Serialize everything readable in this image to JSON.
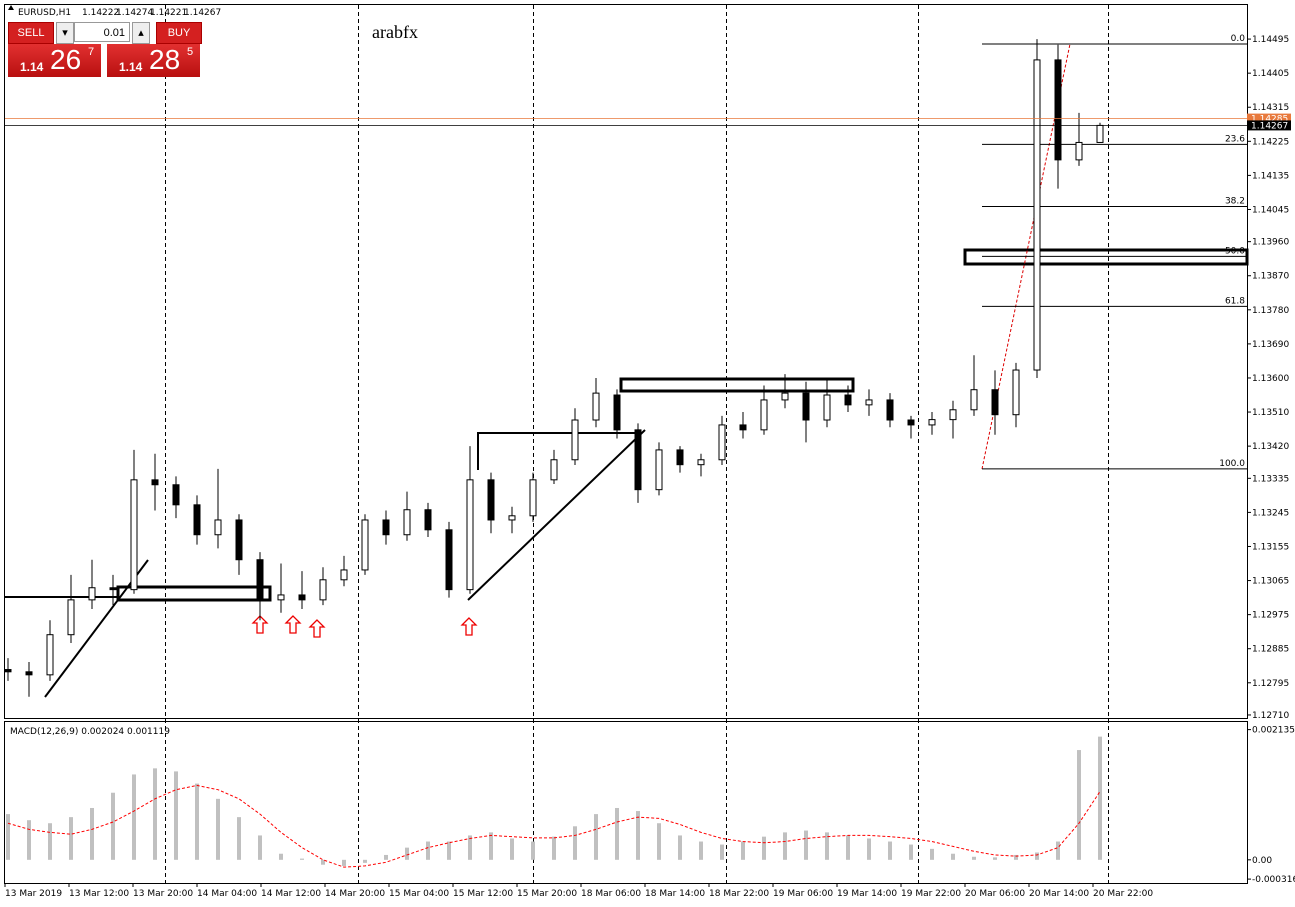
{
  "header": {
    "symbol": "EURUSD,H1",
    "ohlc": [
      1.14222,
      1.14274,
      1.14221,
      1.14267
    ]
  },
  "watermark": "arabfx",
  "trade_panel": {
    "sell": "SELL",
    "buy": "BUY",
    "lot": "0.01",
    "bid": {
      "big": "1.14",
      "pips": "26",
      "point": "7"
    },
    "ask": {
      "big": "1.14",
      "pips": "28",
      "point": "5"
    }
  },
  "chart_data": [
    {
      "type": "candlestick",
      "open": [
        1.1283,
        1.12824,
        1.12816,
        1.12922,
        1.13014,
        1.13046,
        1.13041,
        1.13331,
        1.13318,
        1.13265,
        1.13186,
        1.13225,
        1.1312,
        1.13014,
        1.13027,
        1.13014,
        1.13067,
        1.13093,
        1.13225,
        1.13186,
        1.13252,
        1.13199,
        1.13041,
        1.13331,
        1.13225,
        1.13236,
        1.13331,
        1.13384,
        1.13489,
        1.13555,
        1.13463,
        1.13305,
        1.1341,
        1.13371,
        1.13384,
        1.13476,
        1.13463,
        1.13542,
        1.1356,
        1.13489,
        1.13555,
        1.13529,
        1.13542,
        1.13489,
        1.13476,
        1.1349,
        1.13516,
        1.13569,
        1.13503,
        1.13621,
        1.1444,
        1.14176,
        1.14222
      ],
      "high": [
        1.1286,
        1.1285,
        1.1296,
        1.1308,
        1.1312,
        1.1308,
        1.1341,
        1.134,
        1.1334,
        1.1329,
        1.1336,
        1.1324,
        1.1314,
        1.1311,
        1.1309,
        1.131,
        1.1313,
        1.1324,
        1.1325,
        1.133,
        1.1327,
        1.1322,
        1.1342,
        1.1335,
        1.1326,
        1.1335,
        1.1341,
        1.1352,
        1.136,
        1.1357,
        1.1348,
        1.1343,
        1.1342,
        1.134,
        1.135,
        1.1351,
        1.1358,
        1.1361,
        1.1359,
        1.136,
        1.1358,
        1.1357,
        1.1356,
        1.135,
        1.1351,
        1.1354,
        1.1366,
        1.1362,
        1.1364,
        1.14495,
        1.1448,
        1.143,
        1.14274
      ],
      "low": [
        1.128,
        1.12758,
        1.128,
        1.129,
        1.1299,
        1.13,
        1.1303,
        1.1325,
        1.1323,
        1.1316,
        1.1315,
        1.1308,
        1.1296,
        1.1298,
        1.1299,
        1.13,
        1.1305,
        1.1308,
        1.1316,
        1.1317,
        1.1318,
        1.1302,
        1.1303,
        1.1319,
        1.1319,
        1.1322,
        1.1332,
        1.1337,
        1.1347,
        1.1344,
        1.1327,
        1.1329,
        1.1335,
        1.1334,
        1.1337,
        1.1344,
        1.1345,
        1.1352,
        1.1343,
        1.1347,
        1.1351,
        1.135,
        1.1347,
        1.1344,
        1.1345,
        1.1344,
        1.135,
        1.1345,
        1.1347,
        1.136,
        1.141,
        1.1416,
        1.14221
      ],
      "close": [
        1.12824,
        1.12816,
        1.12922,
        1.13014,
        1.13046,
        1.13041,
        1.13331,
        1.13318,
        1.13265,
        1.13186,
        1.13225,
        1.1312,
        1.13014,
        1.13027,
        1.13014,
        1.13067,
        1.13093,
        1.13225,
        1.13186,
        1.13252,
        1.13199,
        1.13041,
        1.13331,
        1.13225,
        1.13236,
        1.13331,
        1.13384,
        1.13489,
        1.1356,
        1.13463,
        1.13305,
        1.1341,
        1.13371,
        1.13384,
        1.13476,
        1.13463,
        1.13542,
        1.1356,
        1.13489,
        1.13555,
        1.13529,
        1.13542,
        1.13489,
        1.13476,
        1.1349,
        1.13516,
        1.13569,
        1.13503,
        1.13621,
        1.1444,
        1.14176,
        1.14222,
        1.14267
      ],
      "bull_color": "#ffffff",
      "bear_color": "#000000",
      "ylim": [
        1.12702,
        1.14585
      ],
      "yticks": [
        1.14495,
        1.14405,
        1.14315,
        1.14225,
        1.14135,
        1.14045,
        {
          "value": 1.1396,
          "label": "1.13960"
        },
        {
          "value": 1.1387,
          "label": "1.13870"
        },
        {
          "value": 1.1378,
          "label": "1.13780"
        },
        {
          "value": 1.1369,
          "label": "1.13690"
        },
        {
          "value": 1.136,
          "label": "1.13600"
        },
        {
          "value": 1.1351,
          "label": "1.13510"
        },
        {
          "value": 1.1342,
          "label": "1.13420"
        },
        1.13335,
        1.13245,
        1.13155,
        1.13065,
        1.12975,
        1.12885,
        1.12795,
        {
          "value": 1.1271,
          "label": "1.12710"
        }
      ],
      "x_labels": [
        "13 Mar 2019",
        "13 Mar 12:00",
        "13 Mar 20:00",
        "14 Mar 04:00",
        "14 Mar 12:00",
        "14 Mar 20:00",
        "15 Mar 04:00",
        "15 Mar 12:00",
        "15 Mar 20:00",
        "18 Mar 06:00",
        "18 Mar 14:00",
        "18 Mar 22:00",
        "19 Mar 06:00",
        "19 Mar 14:00",
        "19 Mar 22:00",
        "20 Mar 06:00",
        "20 Mar 14:00",
        "20 Mar 22:00"
      ],
      "price_lines": [
        {
          "value": 1.14285,
          "color": "#e8793c"
        },
        {
          "value": 1.14267,
          "color": "#000000"
        }
      ],
      "fibonacci": [
        {
          "label": "0.0",
          "value": 1.14482
        },
        {
          "label": "23.6",
          "value": 1.14217
        },
        {
          "label": "38.2",
          "value": 1.14053
        },
        {
          "label": "50.0",
          "value": 1.13921
        },
        {
          "label": "61.8",
          "value": 1.13789
        },
        {
          "label": "100.0",
          "value": 1.1336
        }
      ]
    },
    {
      "type": "macd",
      "title": "MACD(12,26,9) 0.002024 0.001119",
      "histogram": {
        "color": "#c0c0c0",
        "values": [
          0.00075,
          0.00065,
          0.0006,
          0.0007,
          0.00085,
          0.0011,
          0.0014,
          0.0015,
          0.00145,
          0.00125,
          0.001,
          0.0007,
          0.0004,
          0.0001,
          2e-05,
          -8e-05,
          -0.0001,
          -5e-05,
          8e-05,
          0.0002,
          0.0003,
          0.0003,
          0.0004,
          0.00045,
          0.00035,
          0.0003,
          0.00038,
          0.00055,
          0.00075,
          0.00085,
          0.0008,
          0.0006,
          0.0004,
          0.0003,
          0.00025,
          0.0003,
          0.00038,
          0.00045,
          0.00048,
          0.00045,
          0.0004,
          0.00035,
          0.0003,
          0.00025,
          0.00018,
          0.0001,
          5e-05,
          4e-05,
          8e-05,
          0.00012,
          0.0003,
          0.0018,
          0.00202
        ]
      },
      "signal": {
        "color": "#ff0000",
        "values": [
          0.0006,
          0.0005,
          0.00045,
          0.00042,
          0.0005,
          0.00062,
          0.0008,
          0.001,
          0.00115,
          0.00122,
          0.00115,
          0.001,
          0.00075,
          0.00045,
          0.0002,
          0,
          -0.00012,
          -0.0001,
          -4e-05,
          8e-05,
          0.0002,
          0.00028,
          0.00035,
          0.0004,
          0.00038,
          0.00036,
          0.00036,
          0.0004,
          0.0005,
          0.00062,
          0.0007,
          0.00068,
          0.00058,
          0.00045,
          0.00035,
          0.0003,
          0.00028,
          0.0003,
          0.00035,
          0.00038,
          0.0004,
          0.0004,
          0.00038,
          0.00035,
          0.0003,
          0.00022,
          0.00014,
          8e-05,
          6e-05,
          8e-05,
          0.0002,
          0.0006,
          0.00112
        ]
      },
      "ylim": [
        -0.00038,
        0.00226
      ],
      "yticks": [
        0.002135,
        {
          "value": 0,
          "label": "0.00"
        },
        -0.000316
      ]
    }
  ]
}
